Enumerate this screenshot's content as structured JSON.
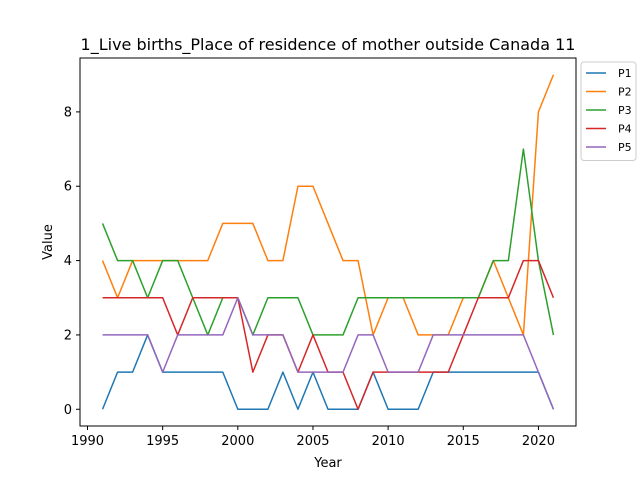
{
  "chart_data": {
    "type": "line",
    "title": "1_Live births_Place of residence of mother outside Canada 11",
    "xlabel": "Year",
    "ylabel": "Value",
    "xlim": [
      1989.5,
      2022.5
    ],
    "ylim": [
      -0.45,
      9.45
    ],
    "x_ticks": [
      1990,
      1995,
      2000,
      2005,
      2010,
      2015,
      2020
    ],
    "y_ticks": [
      0,
      2,
      4,
      6,
      8
    ],
    "grid": false,
    "legend_position": "outside top-right",
    "x": [
      1991,
      1992,
      1993,
      1994,
      1995,
      1996,
      1997,
      1998,
      1999,
      2000,
      2001,
      2002,
      2003,
      2004,
      2005,
      2006,
      2007,
      2008,
      2009,
      2010,
      2011,
      2012,
      2013,
      2014,
      2015,
      2016,
      2017,
      2018,
      2019,
      2020,
      2021
    ],
    "series": [
      {
        "name": "P1",
        "color": "#1f77b4",
        "values": [
          0,
          1,
          1,
          2,
          1,
          1,
          1,
          1,
          1,
          0,
          0,
          0,
          1,
          0,
          1,
          0,
          0,
          0,
          1,
          0,
          0,
          0,
          1,
          1,
          1,
          1,
          1,
          1,
          1,
          1,
          0
        ]
      },
      {
        "name": "P2",
        "color": "#ff7f0e",
        "values": [
          4,
          3,
          4,
          4,
          4,
          4,
          4,
          4,
          5,
          5,
          5,
          4,
          4,
          6,
          6,
          5,
          4,
          4,
          2,
          3,
          3,
          2,
          2,
          2,
          3,
          3,
          4,
          3,
          2,
          8,
          9
        ]
      },
      {
        "name": "P3",
        "color": "#2ca02c",
        "values": [
          5,
          4,
          4,
          3,
          4,
          4,
          3,
          2,
          3,
          3,
          2,
          3,
          3,
          3,
          2,
          2,
          2,
          3,
          3,
          3,
          3,
          3,
          3,
          3,
          3,
          3,
          4,
          4,
          7,
          4,
          2
        ]
      },
      {
        "name": "P4",
        "color": "#d62728",
        "values": [
          3,
          3,
          3,
          3,
          3,
          2,
          3,
          3,
          3,
          3,
          1,
          2,
          2,
          1,
          2,
          1,
          1,
          0,
          1,
          1,
          1,
          1,
          1,
          1,
          2,
          3,
          3,
          3,
          4,
          4,
          3
        ]
      },
      {
        "name": "P5",
        "color": "#9467bd",
        "values": [
          2,
          2,
          2,
          2,
          1,
          2,
          2,
          2,
          2,
          3,
          2,
          2,
          2,
          1,
          1,
          1,
          1,
          2,
          2,
          1,
          1,
          1,
          2,
          2,
          2,
          2,
          2,
          2,
          2,
          1,
          0
        ]
      }
    ]
  }
}
